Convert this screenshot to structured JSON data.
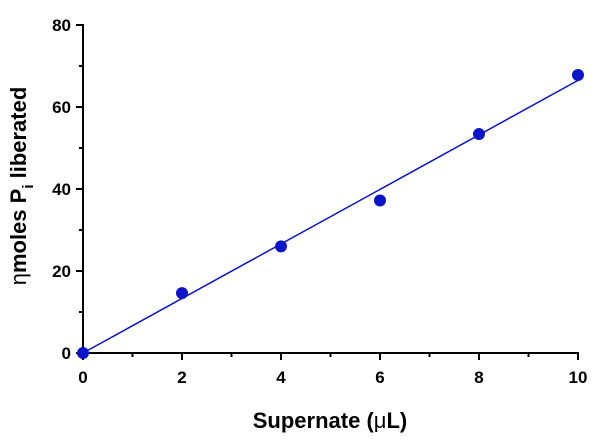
{
  "chart_data": {
    "type": "scatter",
    "xlabel": {
      "prefix": "Supernate (",
      "mu": "μ",
      "suffix": "L)"
    },
    "ylabel": {
      "eta": "η",
      "main": "moles P",
      "subscript": "i",
      "suffix": " liberated"
    },
    "xlim": [
      0,
      10
    ],
    "ylim": [
      0,
      80
    ],
    "xticks": [
      0,
      2,
      4,
      6,
      8,
      10
    ],
    "yticks": [
      0,
      20,
      40,
      60,
      80
    ],
    "grid": false,
    "series": [
      {
        "x": [
          0,
          2,
          4,
          6,
          8,
          10
        ],
        "y": [
          0,
          14.6,
          26.0,
          37.2,
          53.4,
          67.8
        ]
      }
    ],
    "fit_line": {
      "x": [
        0,
        10
      ],
      "y": [
        0,
        66.5
      ]
    },
    "colors": {
      "marker": "#0a14c8",
      "line": "#0a14c8",
      "axis": "#000000"
    }
  }
}
